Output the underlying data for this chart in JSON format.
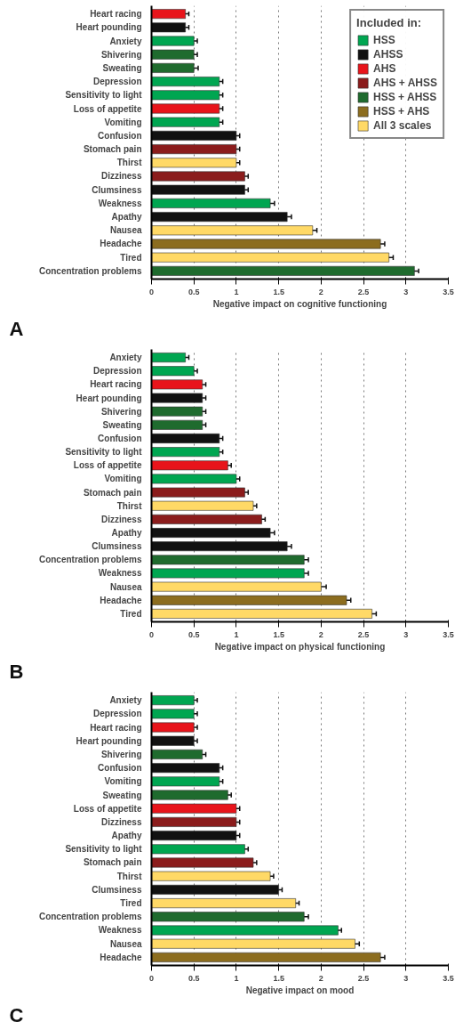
{
  "chart_data": [
    {
      "type": "bar",
      "orientation": "horizontal",
      "legend": "top right",
      "legend_title": "Included in:",
      "grid": "x",
      "xlabel": "Negative impact on cognitive functioning",
      "xlim": [
        0,
        3.5
      ],
      "xticks": [
        0,
        0.5,
        1,
        1.5,
        2,
        2.5,
        3,
        3.5
      ],
      "annotations": [
        "A"
      ],
      "categories": [
        "Heart racing",
        "Heart pounding",
        "Anxiety",
        "Shivering",
        "Sweating",
        "Depression",
        "Sensitivity to light",
        "Loss of appetite",
        "Vomiting",
        "Confusion",
        "Stomach pain",
        "Thirst",
        "Dizziness",
        "Clumsiness",
        "Weakness",
        "Apathy",
        "Nausea",
        "Headache",
        "Tired",
        "Concentration problems"
      ],
      "series": [
        {
          "name": "HSS",
          "color": "#00a651",
          "values": [
            null,
            null,
            0.5,
            null,
            null,
            0.8,
            0.8,
            null,
            0.8,
            null,
            null,
            null,
            null,
            null,
            1.4,
            null,
            null,
            null,
            null,
            null
          ],
          "errors": [
            null,
            null,
            0.04,
            null,
            null,
            0.04,
            0.04,
            null,
            0.04,
            null,
            null,
            null,
            null,
            null,
            0.05,
            null,
            null,
            null,
            null,
            null
          ]
        },
        {
          "name": "AHSS",
          "color": "#111111",
          "values": [
            null,
            0.4,
            null,
            null,
            null,
            null,
            null,
            null,
            null,
            1.0,
            null,
            null,
            null,
            1.1,
            null,
            1.6,
            null,
            null,
            null,
            null
          ],
          "errors": [
            null,
            0.04,
            null,
            null,
            null,
            null,
            null,
            null,
            null,
            0.04,
            null,
            null,
            null,
            0.04,
            null,
            0.05,
            null,
            null,
            null,
            null
          ]
        },
        {
          "name": "AHS",
          "color": "#e8141b",
          "values": [
            0.4,
            null,
            null,
            null,
            null,
            null,
            null,
            0.8,
            null,
            null,
            null,
            null,
            null,
            null,
            null,
            null,
            null,
            null,
            null,
            null
          ],
          "errors": [
            0.04,
            null,
            null,
            null,
            null,
            null,
            null,
            0.04,
            null,
            null,
            null,
            null,
            null,
            null,
            null,
            null,
            null,
            null,
            null,
            null
          ]
        },
        {
          "name": "AHS + AHSS",
          "color": "#8b1c1c",
          "values": [
            null,
            null,
            null,
            null,
            null,
            null,
            null,
            null,
            null,
            null,
            1.0,
            null,
            1.1,
            null,
            null,
            null,
            null,
            null,
            null,
            null
          ],
          "errors": [
            null,
            null,
            null,
            null,
            null,
            null,
            null,
            null,
            null,
            null,
            0.04,
            null,
            0.04,
            null,
            null,
            null,
            null,
            null,
            null,
            null
          ]
        },
        {
          "name": "HSS + AHSS",
          "color": "#1f6b2e",
          "values": [
            null,
            null,
            null,
            0.5,
            0.5,
            null,
            null,
            null,
            null,
            null,
            null,
            null,
            null,
            null,
            null,
            null,
            null,
            null,
            null,
            3.1
          ],
          "errors": [
            null,
            null,
            null,
            0.04,
            0.05,
            null,
            null,
            null,
            null,
            null,
            null,
            null,
            null,
            null,
            null,
            null,
            null,
            null,
            null,
            0.05
          ]
        },
        {
          "name": "HSS + AHS",
          "color": "#8c6d1f",
          "values": [
            null,
            null,
            null,
            null,
            null,
            null,
            null,
            null,
            null,
            null,
            null,
            null,
            null,
            null,
            null,
            null,
            null,
            2.7,
            null,
            null
          ],
          "errors": [
            null,
            null,
            null,
            null,
            null,
            null,
            null,
            null,
            null,
            null,
            null,
            null,
            null,
            null,
            null,
            null,
            null,
            0.05,
            null,
            null
          ]
        },
        {
          "name": "All 3 scales",
          "color": "#ffd966",
          "values": [
            null,
            null,
            null,
            null,
            null,
            null,
            null,
            null,
            null,
            null,
            null,
            1.0,
            null,
            null,
            null,
            null,
            1.9,
            null,
            2.8,
            null
          ],
          "errors": [
            null,
            null,
            null,
            null,
            null,
            null,
            null,
            null,
            null,
            null,
            null,
            0.04,
            null,
            null,
            null,
            null,
            0.05,
            null,
            0.05,
            null
          ]
        }
      ]
    },
    {
      "type": "bar",
      "orientation": "horizontal",
      "grid": "x",
      "xlabel": "Negative impact on physical functioning",
      "xlim": [
        0,
        3.5
      ],
      "xticks": [
        0,
        0.5,
        1,
        1.5,
        2,
        2.5,
        3,
        3.5
      ],
      "annotations": [
        "B"
      ],
      "categories": [
        "Anxiety",
        "Depression",
        "Heart racing",
        "Heart pounding",
        "Shivering",
        "Sweating",
        "Confusion",
        "Sensitivity to light",
        "Loss of appetite",
        "Vomiting",
        "Stomach pain",
        "Thirst",
        "Dizziness",
        "Apathy",
        "Clumsiness",
        "Concentration problems",
        "Weakness",
        "Nausea",
        "Headache",
        "Tired"
      ],
      "series": [
        {
          "color": "#00a651",
          "values": [
            0.4,
            0.5,
            null,
            null,
            null,
            null,
            null,
            0.8,
            null,
            1.0,
            null,
            null,
            null,
            null,
            null,
            null,
            1.8,
            null,
            null,
            null
          ],
          "errors": [
            0.04,
            0.04,
            null,
            null,
            null,
            null,
            null,
            0.04,
            null,
            0.04,
            null,
            null,
            null,
            null,
            null,
            null,
            0.05,
            null,
            null,
            null
          ]
        },
        {
          "color": "#111111",
          "values": [
            null,
            null,
            null,
            0.6,
            null,
            null,
            0.8,
            null,
            null,
            null,
            null,
            null,
            null,
            1.4,
            1.6,
            null,
            null,
            null,
            null,
            null
          ],
          "errors": [
            null,
            null,
            null,
            0.04,
            null,
            null,
            0.04,
            null,
            null,
            null,
            null,
            null,
            null,
            0.05,
            0.05,
            null,
            null,
            null,
            null,
            null
          ]
        },
        {
          "color": "#e8141b",
          "values": [
            null,
            null,
            0.6,
            null,
            null,
            null,
            null,
            null,
            0.9,
            null,
            null,
            null,
            null,
            null,
            null,
            null,
            null,
            null,
            null,
            null
          ],
          "errors": [
            null,
            null,
            0.04,
            null,
            null,
            null,
            null,
            null,
            0.04,
            null,
            null,
            null,
            null,
            null,
            null,
            null,
            null,
            null,
            null,
            null
          ]
        },
        {
          "color": "#8b1c1c",
          "values": [
            null,
            null,
            null,
            null,
            null,
            null,
            null,
            null,
            null,
            null,
            1.1,
            null,
            1.3,
            null,
            null,
            null,
            null,
            null,
            null,
            null
          ],
          "errors": [
            null,
            null,
            null,
            null,
            null,
            null,
            null,
            null,
            null,
            null,
            0.04,
            null,
            0.04,
            null,
            null,
            null,
            null,
            null,
            null,
            null
          ]
        },
        {
          "color": "#1f6b2e",
          "values": [
            null,
            null,
            null,
            null,
            0.6,
            0.6,
            null,
            null,
            null,
            null,
            null,
            null,
            null,
            null,
            null,
            1.8,
            null,
            null,
            null,
            null
          ],
          "errors": [
            null,
            null,
            null,
            null,
            0.04,
            0.04,
            null,
            null,
            null,
            null,
            null,
            null,
            null,
            null,
            null,
            0.05,
            null,
            null,
            null,
            null
          ]
        },
        {
          "color": "#8c6d1f",
          "values": [
            null,
            null,
            null,
            null,
            null,
            null,
            null,
            null,
            null,
            null,
            null,
            null,
            null,
            null,
            null,
            null,
            null,
            null,
            2.3,
            null
          ],
          "errors": [
            null,
            null,
            null,
            null,
            null,
            null,
            null,
            null,
            null,
            null,
            null,
            null,
            null,
            null,
            null,
            null,
            null,
            null,
            0.05,
            null
          ]
        },
        {
          "color": "#ffd966",
          "values": [
            null,
            null,
            null,
            null,
            null,
            null,
            null,
            null,
            null,
            null,
            null,
            1.2,
            null,
            null,
            null,
            null,
            null,
            2.0,
            null,
            2.6
          ],
          "errors": [
            null,
            null,
            null,
            null,
            null,
            null,
            null,
            null,
            null,
            null,
            null,
            0.04,
            null,
            null,
            null,
            null,
            null,
            0.06,
            null,
            0.05
          ]
        }
      ]
    },
    {
      "type": "bar",
      "orientation": "horizontal",
      "grid": "x",
      "xlabel": "Negative impact on mood",
      "xlim": [
        0,
        3.5
      ],
      "xticks": [
        0,
        0.5,
        1,
        1.5,
        2,
        2.5,
        3,
        3.5
      ],
      "annotations": [
        "C"
      ],
      "categories": [
        "Anxiety",
        "Depression",
        "Heart racing",
        "Heart pounding",
        "Shivering",
        "Confusion",
        "Vomiting",
        "Sweating",
        "Loss of appetite",
        "Dizziness",
        "Apathy",
        "Sensitivity to light",
        "Stomach pain",
        "Thirst",
        "Clumsiness",
        "Tired",
        "Concentration problems",
        "Weakness",
        "Nausea",
        "Headache"
      ],
      "series": [
        {
          "color": "#00a651",
          "values": [
            0.5,
            0.5,
            null,
            null,
            null,
            null,
            0.8,
            null,
            null,
            null,
            null,
            1.1,
            null,
            null,
            null,
            null,
            null,
            2.2,
            null,
            null
          ],
          "errors": [
            0.04,
            0.04,
            null,
            null,
            null,
            null,
            0.04,
            null,
            null,
            null,
            null,
            0.04,
            null,
            null,
            null,
            null,
            null,
            0.04,
            null,
            null
          ]
        },
        {
          "color": "#111111",
          "values": [
            null,
            null,
            null,
            0.5,
            null,
            0.8,
            null,
            null,
            null,
            null,
            1.0,
            null,
            null,
            null,
            1.5,
            null,
            null,
            null,
            null,
            null
          ],
          "errors": [
            null,
            null,
            null,
            0.04,
            null,
            0.04,
            null,
            null,
            null,
            null,
            0.04,
            null,
            null,
            null,
            0.04,
            null,
            null,
            null,
            null,
            null
          ]
        },
        {
          "color": "#e8141b",
          "values": [
            null,
            null,
            0.5,
            null,
            null,
            null,
            null,
            null,
            1.0,
            null,
            null,
            null,
            null,
            null,
            null,
            null,
            null,
            null,
            null,
            null
          ],
          "errors": [
            null,
            null,
            0.04,
            null,
            null,
            null,
            null,
            null,
            0.04,
            null,
            null,
            null,
            null,
            null,
            null,
            null,
            null,
            null,
            null,
            null
          ]
        },
        {
          "color": "#8b1c1c",
          "values": [
            null,
            null,
            null,
            null,
            null,
            null,
            null,
            null,
            null,
            1.0,
            null,
            null,
            1.2,
            null,
            null,
            null,
            null,
            null,
            null,
            null
          ],
          "errors": [
            null,
            null,
            null,
            null,
            null,
            null,
            null,
            null,
            null,
            0.04,
            null,
            null,
            0.04,
            null,
            null,
            null,
            null,
            null,
            null,
            null
          ]
        },
        {
          "color": "#1f6b2e",
          "values": [
            null,
            null,
            null,
            null,
            0.6,
            null,
            null,
            0.9,
            null,
            null,
            null,
            null,
            null,
            null,
            null,
            null,
            1.8,
            null,
            null,
            null
          ],
          "errors": [
            null,
            null,
            null,
            null,
            0.04,
            null,
            null,
            0.04,
            null,
            null,
            null,
            null,
            null,
            null,
            null,
            null,
            0.05,
            null,
            null,
            null
          ]
        },
        {
          "color": "#8c6d1f",
          "values": [
            null,
            null,
            null,
            null,
            null,
            null,
            null,
            null,
            null,
            null,
            null,
            null,
            null,
            null,
            null,
            null,
            null,
            null,
            null,
            2.7
          ],
          "errors": [
            null,
            null,
            null,
            null,
            null,
            null,
            null,
            null,
            null,
            null,
            null,
            null,
            null,
            null,
            null,
            null,
            null,
            null,
            null,
            0.05
          ]
        },
        {
          "color": "#ffd966",
          "values": [
            null,
            null,
            null,
            null,
            null,
            null,
            null,
            null,
            null,
            null,
            null,
            null,
            null,
            1.4,
            null,
            1.7,
            null,
            null,
            2.4,
            null
          ],
          "errors": [
            null,
            null,
            null,
            null,
            null,
            null,
            null,
            null,
            null,
            null,
            null,
            null,
            null,
            0.04,
            null,
            0.04,
            null,
            null,
            0.05,
            null
          ]
        }
      ]
    }
  ]
}
